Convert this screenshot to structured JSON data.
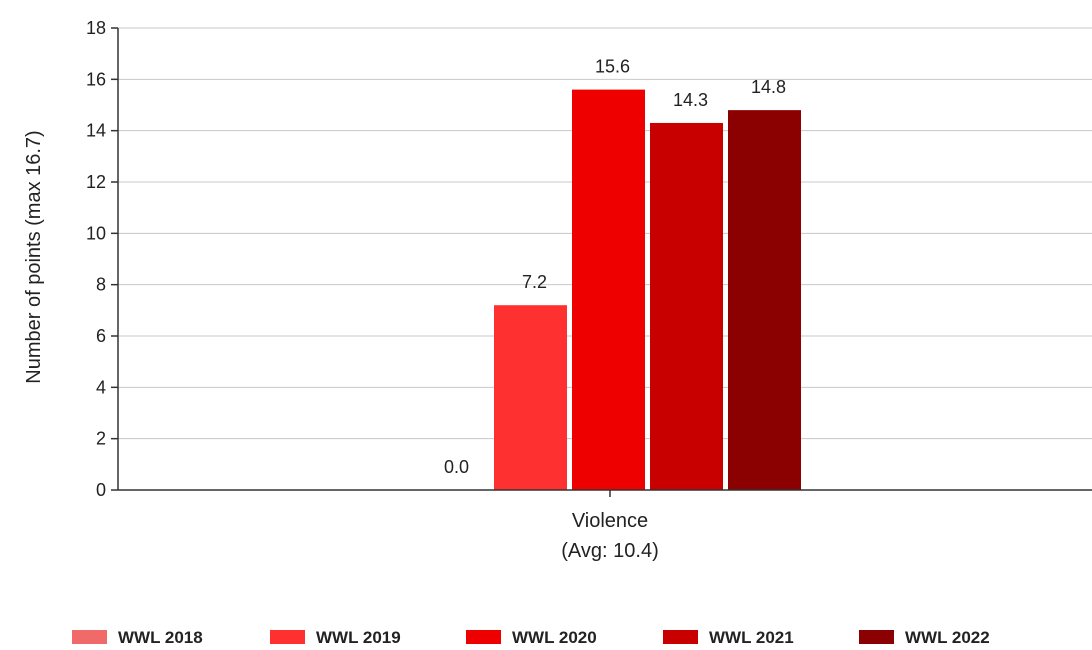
{
  "chart_data": {
    "type": "bar",
    "categories": [
      "Violence"
    ],
    "category_sublabels": [
      "(Avg: 10.4)"
    ],
    "ylabel": "Number of points (max 16.7)",
    "ylim": [
      0,
      18
    ],
    "yticks": [
      0,
      2,
      4,
      6,
      8,
      10,
      12,
      14,
      16,
      18
    ],
    "grid": true,
    "legend_position": "bottom",
    "series": [
      {
        "name": "WWL 2018",
        "values": [
          0.0
        ],
        "label": "0.0",
        "color": "#f06a6a"
      },
      {
        "name": "WWL 2019",
        "values": [
          7.2
        ],
        "label": "7.2",
        "color": "#ff3030"
      },
      {
        "name": "WWL 2020",
        "values": [
          15.6
        ],
        "label": "15.6",
        "color": "#ee0000"
      },
      {
        "name": "WWL 2021",
        "values": [
          14.3
        ],
        "label": "14.3",
        "color": "#c80000"
      },
      {
        "name": "WWL 2022",
        "values": [
          14.8
        ],
        "label": "14.8",
        "color": "#8b0000"
      }
    ]
  }
}
